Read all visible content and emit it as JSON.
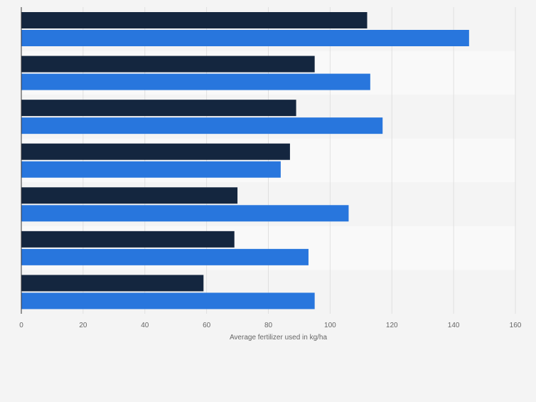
{
  "colors": {
    "page_background": "#f4f4f4",
    "band_odd": "#f4f4f4",
    "band_even": "#f9f9f9",
    "gridline": "#e0e0e0",
    "axis_line": "#333333",
    "tick_text": "#666666",
    "series_1": "#14263f",
    "series_2": "#2876dd"
  },
  "chart_data": {
    "type": "bar",
    "orientation": "horizontal",
    "title": "",
    "xlabel": "Average fertilizer used in kg/ha",
    "ylabel": "",
    "xlim": [
      0,
      160
    ],
    "x_ticks": [
      0,
      20,
      40,
      60,
      80,
      100,
      120,
      140,
      160
    ],
    "grid": true,
    "legend": "none",
    "categories": [
      "",
      "",
      "",
      "",
      "",
      "",
      ""
    ],
    "series": [
      {
        "values": [
          112,
          95,
          89,
          87,
          70,
          69,
          59
        ]
      },
      {
        "values": [
          145,
          113,
          117,
          84,
          106,
          93,
          95
        ]
      }
    ]
  }
}
